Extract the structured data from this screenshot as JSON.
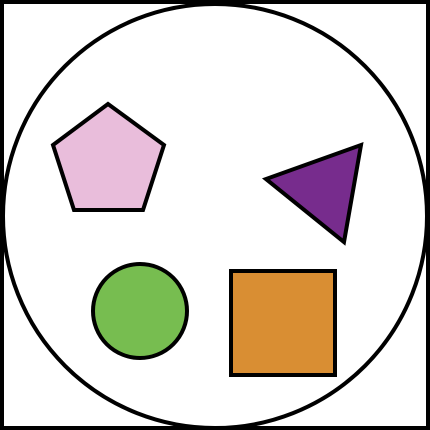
{
  "frame": {
    "stroke": "#000000",
    "fill": "#ffffff"
  },
  "enclosing_circle": {
    "stroke": "#000000",
    "fill": "#ffffff"
  },
  "shapes": [
    {
      "id": "pentagon",
      "fill": "#e9bddb"
    },
    {
      "id": "triangle",
      "fill": "#772c8d"
    },
    {
      "id": "circle",
      "fill": "#77bd50"
    },
    {
      "id": "square",
      "fill": "#d98e33"
    }
  ]
}
